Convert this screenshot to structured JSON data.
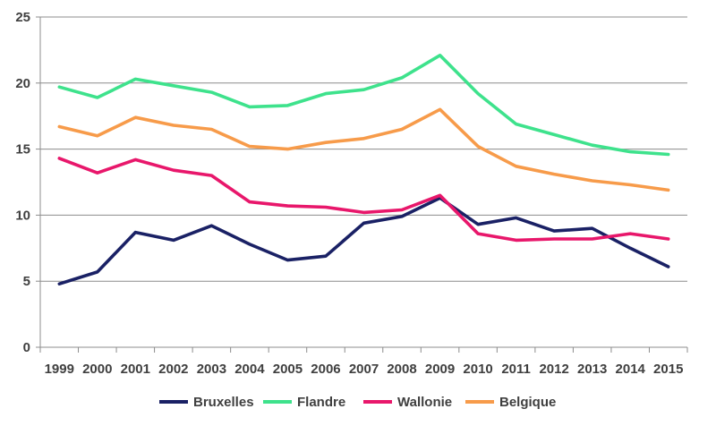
{
  "chart_data": {
    "type": "line",
    "title": "",
    "xlabel": "",
    "ylabel": "",
    "ylim": [
      0,
      25
    ],
    "yticks": [
      0,
      5,
      10,
      15,
      20,
      25
    ],
    "grid": "horizontal",
    "legend_position": "bottom",
    "categories": [
      "1999",
      "2000",
      "2001",
      "2002",
      "2003",
      "2004",
      "2005",
      "2006",
      "2007",
      "2008",
      "2009",
      "2010",
      "2011",
      "2012",
      "2013",
      "2014",
      "2015"
    ],
    "series": [
      {
        "name": "Bruxelles",
        "color": "#1a2165",
        "values": [
          4.8,
          5.7,
          8.7,
          8.1,
          9.2,
          7.8,
          6.6,
          6.9,
          9.4,
          9.9,
          11.3,
          9.3,
          9.8,
          8.8,
          9.0,
          7.5,
          6.1
        ]
      },
      {
        "name": "Flandre",
        "color": "#3ee28c",
        "values": [
          19.7,
          18.9,
          20.3,
          19.8,
          19.3,
          18.2,
          18.3,
          19.2,
          19.5,
          20.4,
          22.1,
          19.2,
          16.9,
          16.1,
          15.3,
          14.8,
          14.6
        ]
      },
      {
        "name": "Wallonie",
        "color": "#e8176b",
        "values": [
          14.3,
          13.2,
          14.2,
          13.4,
          13.0,
          11.0,
          10.7,
          10.6,
          10.2,
          10.4,
          11.5,
          8.6,
          8.1,
          8.2,
          8.2,
          8.6,
          8.2
        ]
      },
      {
        "name": "Belgique",
        "color": "#f79b4a",
        "values": [
          16.7,
          16.0,
          17.4,
          16.8,
          16.5,
          15.2,
          15.0,
          15.5,
          15.8,
          16.5,
          18.0,
          15.2,
          13.7,
          13.1,
          12.6,
          12.3,
          11.9
        ]
      }
    ]
  }
}
